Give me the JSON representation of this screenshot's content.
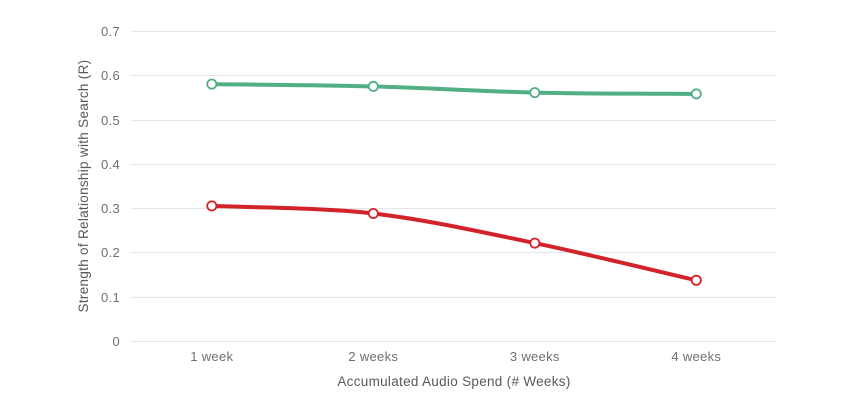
{
  "chart_data": {
    "type": "line",
    "title": "",
    "xlabel": "Accumulated Audio Spend (# Weeks)",
    "ylabel": "Strength of Relationship with Search (R)",
    "categories": [
      "1 week",
      "2 weeks",
      "3 weeks",
      "4 weeks"
    ],
    "series": [
      {
        "name": "green",
        "color": "#52ae83",
        "values": [
          0.58,
          0.575,
          0.561,
          0.558
        ]
      },
      {
        "name": "red",
        "color": "#d2232b",
        "values": [
          0.305,
          0.288,
          0.221,
          0.137
        ]
      }
    ],
    "ylim": [
      0,
      0.7
    ],
    "yticks": [
      0,
      0.1,
      0.2,
      0.3,
      0.4,
      0.5,
      0.6,
      0.7
    ],
    "ytick_labels": [
      "0",
      "0.1",
      "0.2",
      "0.3",
      "0.4",
      "0.5",
      "0.6",
      "0.7"
    ],
    "grid": "horizontal",
    "legend": "none",
    "marker": "open-circle"
  }
}
